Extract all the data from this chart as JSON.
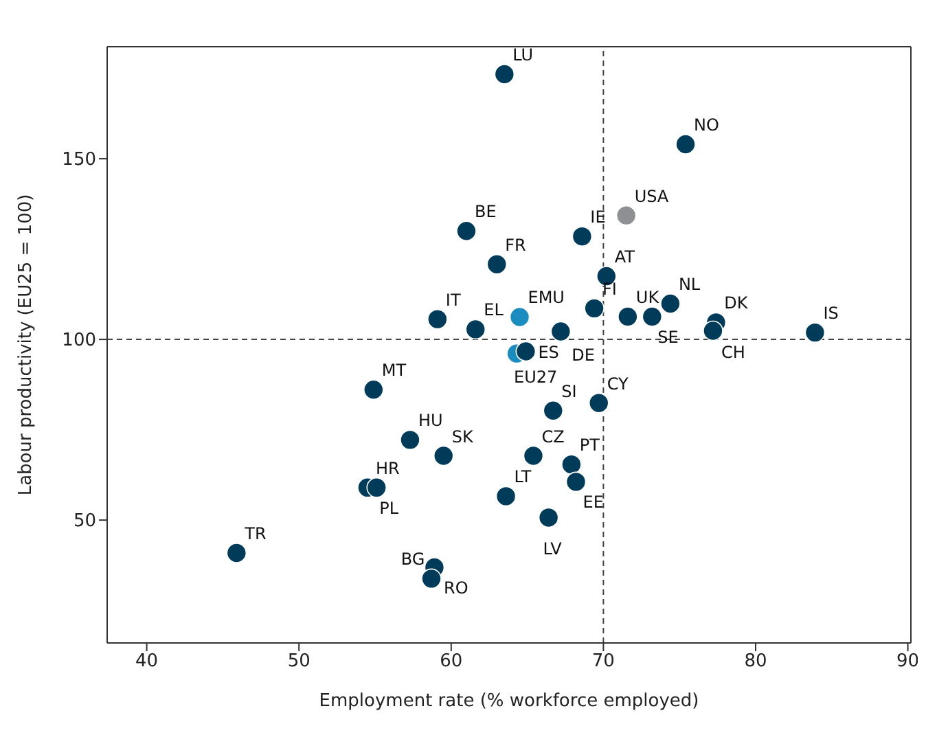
{
  "chart_data": {
    "type": "scatter",
    "xlabel": "Employment rate (% workforce employed)",
    "ylabel": "Labour productivity (EU25 = 100)",
    "xlim": [
      37.4,
      90.2
    ],
    "xticks": [
      40,
      50,
      60,
      70,
      80,
      90
    ],
    "ylim": [
      16,
      181
    ],
    "yticks": [
      50,
      100,
      150
    ],
    "marker": "circle",
    "series": [
      {
        "x": [
          63.5,
          75.4,
          71.5,
          68.6,
          61.0,
          63.0,
          70.2,
          74.4,
          71.6,
          73.2,
          69.4,
          67.2,
          77.4,
          77.2,
          83.9,
          64.5,
          59.1,
          61.6,
          64.3,
          64.9,
          66.7,
          69.7,
          65.4,
          67.9,
          68.2,
          63.6,
          66.4,
          54.9,
          57.3,
          59.5,
          54.5,
          55.1,
          45.9,
          58.9,
          58.7
        ],
        "values": [
          173.4,
          154,
          134.3,
          128.5,
          130,
          120.8,
          117.5,
          109.9,
          106.3,
          106.3,
          108.6,
          102.2,
          104.7,
          102.4,
          101.9,
          106.2,
          105.6,
          102.8,
          96.1,
          96.7,
          80.3,
          82.4,
          67.8,
          65.4,
          60.6,
          56.6,
          50.7,
          86.1,
          72.2,
          67.8,
          59.0,
          59.0,
          40.9,
          36.9,
          33.8
        ],
        "colors": [
          "#013b5a",
          "#013b5a",
          "#8f9094",
          "#013b5a",
          "#013b5a",
          "#013b5a",
          "#013b5a",
          "#013b5a",
          "#013b5a",
          "#013b5a",
          "#013b5a",
          "#013b5a",
          "#013b5a",
          "#013b5a",
          "#013b5a",
          "#1a8cbf",
          "#013b5a",
          "#013b5a",
          "#1a8cbf",
          "#013b5a",
          "#013b5a",
          "#013b5a",
          "#013b5a",
          "#013b5a",
          "#013b5a",
          "#013b5a",
          "#013b5a",
          "#013b5a",
          "#013b5a",
          "#013b5a",
          "#013b5a",
          "#013b5a",
          "#013b5a",
          "#013b5a",
          "#013b5a"
        ]
      }
    ],
    "ref_lines": [
      {
        "axis": "x",
        "value": 70,
        "line_style": "dashed",
        "color": "#444444"
      },
      {
        "axis": "y",
        "value": 100,
        "line_style": "dashed",
        "color": "#444444"
      }
    ],
    "annotations": [
      {
        "text": "LU",
        "x": 63.5,
        "y": 173.4
      },
      {
        "text": "NO",
        "x": 75.4,
        "y": 154
      },
      {
        "text": "USA",
        "x": 71.5,
        "y": 134.3
      },
      {
        "text": "IE",
        "x": 68.6,
        "y": 128.5
      },
      {
        "text": "BE",
        "x": 61.0,
        "y": 130
      },
      {
        "text": "FR",
        "x": 63.0,
        "y": 120.8
      },
      {
        "text": "AT",
        "x": 70.2,
        "y": 117.5
      },
      {
        "text": "NL",
        "x": 74.4,
        "y": 109.9
      },
      {
        "text": "UK",
        "x": 71.6,
        "y": 106.3
      },
      {
        "text": "SE",
        "x": 73.2,
        "y": 106.3
      },
      {
        "text": "FI",
        "x": 69.4,
        "y": 108.6
      },
      {
        "text": "DE",
        "x": 67.2,
        "y": 102.2
      },
      {
        "text": "DK",
        "x": 77.4,
        "y": 104.7
      },
      {
        "text": "CH",
        "x": 77.2,
        "y": 102.4
      },
      {
        "text": "IS",
        "x": 83.9,
        "y": 101.9
      },
      {
        "text": "EMU",
        "x": 64.5,
        "y": 106.2
      },
      {
        "text": "IT",
        "x": 59.1,
        "y": 105.6
      },
      {
        "text": "EL",
        "x": 61.6,
        "y": 102.8
      },
      {
        "text": "EU27",
        "x": 64.3,
        "y": 96.1
      },
      {
        "text": "ES",
        "x": 64.9,
        "y": 96.7
      },
      {
        "text": "SI",
        "x": 66.7,
        "y": 80.3
      },
      {
        "text": "CY",
        "x": 69.7,
        "y": 82.4
      },
      {
        "text": "CZ",
        "x": 65.4,
        "y": 67.8
      },
      {
        "text": "PT",
        "x": 67.9,
        "y": 65.4
      },
      {
        "text": "EE",
        "x": 68.2,
        "y": 60.6
      },
      {
        "text": "LT",
        "x": 63.6,
        "y": 56.6
      },
      {
        "text": "LV",
        "x": 66.4,
        "y": 50.7
      },
      {
        "text": "MT",
        "x": 54.9,
        "y": 86.1
      },
      {
        "text": "HU",
        "x": 57.3,
        "y": 72.2
      },
      {
        "text": "SK",
        "x": 59.5,
        "y": 67.8
      },
      {
        "text": "HR",
        "x": 54.5,
        "y": 59.0
      },
      {
        "text": "PL",
        "x": 55.1,
        "y": 59.0
      },
      {
        "text": "TR",
        "x": 45.9,
        "y": 40.9
      },
      {
        "text": "BG",
        "x": 58.9,
        "y": 36.9
      },
      {
        "text": "RO",
        "x": 58.7,
        "y": 33.8
      }
    ]
  }
}
